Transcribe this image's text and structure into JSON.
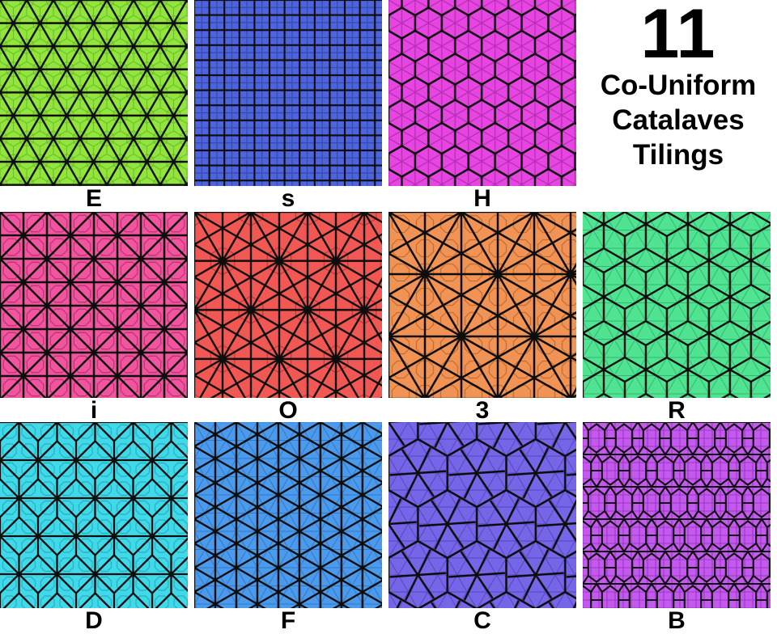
{
  "title": {
    "number": "11",
    "line1": "Co-Uniform",
    "line2": "Catalaves",
    "line3": "Tilings"
  },
  "tiles": [
    {
      "label": "E",
      "pattern": "triangular",
      "fill": "#92E53C",
      "accent": "#6EBE2A"
    },
    {
      "label": "s",
      "pattern": "square",
      "fill": "#4D64DC",
      "accent": "#3448AE"
    },
    {
      "label": "H",
      "pattern": "hexagonal",
      "fill": "#E645E2",
      "accent": "#B92EB5"
    },
    {
      "label": "i",
      "pattern": "tetrakis-square",
      "fill": "#F0559D",
      "accent": "#C23379"
    },
    {
      "label": "O",
      "pattern": "kisrhombille",
      "fill": "#F15853",
      "accent": "#C53733"
    },
    {
      "label": "3",
      "pattern": "star-lattice",
      "fill": "#F09355",
      "accent": "#C56F33"
    },
    {
      "label": "R",
      "pattern": "rhombille",
      "fill": "#4FE392",
      "accent": "#35B86F"
    },
    {
      "label": "D",
      "pattern": "cairo-pentagonal",
      "fill": "#3FD9EA",
      "accent": "#2BAEBD"
    },
    {
      "label": "F",
      "pattern": "hex-rosette",
      "fill": "#4C9AEC",
      "accent": "#2F79C8"
    },
    {
      "label": "C",
      "pattern": "floret-pentagonal",
      "fill": "#7466E6",
      "accent": "#5546BE"
    },
    {
      "label": "B",
      "pattern": "elongated-hexagonal",
      "fill": "#C459EE",
      "accent": "#9B36C8"
    }
  ],
  "line_color": "#0d0d0d"
}
